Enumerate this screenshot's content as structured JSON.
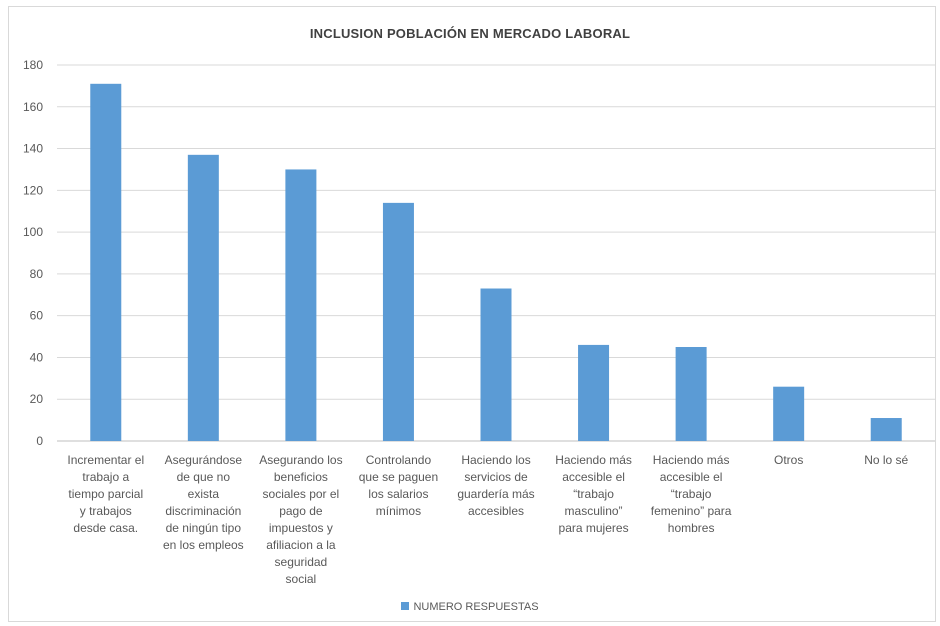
{
  "chart_data": {
    "type": "bar",
    "title": "INCLUSION  POBLACIÓN EN MERCADO  LABORAL",
    "categories": [
      [
        "Incrementar el",
        "trabajo a",
        "tiempo parcial",
        "y trabajos",
        "desde casa."
      ],
      [
        "Asegurándose",
        "de que no",
        "exista",
        "discriminación",
        "de ningún tipo",
        "en los empleos"
      ],
      [
        "Asegurando los",
        "beneficios",
        "sociales por el",
        "pago de",
        "impuestos y",
        "afiliacion a la",
        "seguridad",
        "social"
      ],
      [
        "Controlando",
        "que se paguen",
        "los salarios",
        "mínimos"
      ],
      [
        "Haciendo los",
        "servicios de",
        "guardería más",
        "accesibles"
      ],
      [
        "Haciendo más",
        "accesible el",
        "“trabajo",
        "masculino”",
        "para mujeres"
      ],
      [
        "Haciendo más",
        "accesible el",
        "“trabajo",
        "femenino” para",
        "hombres"
      ],
      [
        "Otros"
      ],
      [
        "No lo sé"
      ]
    ],
    "series": [
      {
        "name": "NUMERO RESPUESTAS",
        "values": [
          171,
          137,
          130,
          114,
          73,
          46,
          45,
          26,
          11
        ]
      }
    ],
    "ylim": [
      0,
      180
    ],
    "yticks": [
      0,
      20,
      40,
      60,
      80,
      100,
      120,
      140,
      160,
      180
    ],
    "grid": true,
    "legend": "bottom",
    "colors": {
      "bar": "#5b9bd5",
      "grid": "#d9d9d9",
      "text": "#595959"
    }
  }
}
